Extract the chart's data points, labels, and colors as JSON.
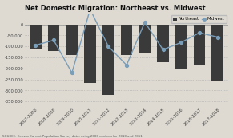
{
  "title": "Net Domestic Migration: Northeast vs. Midwest",
  "categories": [
    "2007-2008",
    "2008-2009",
    "2009-2010",
    "2010-2011",
    "2011-2012",
    "2012-2013",
    "2013-2014",
    "2014-2015",
    "2015-2016",
    "2016-2017",
    "2017-2018"
  ],
  "northeast_values": [
    -110000,
    -120000,
    -140000,
    -265000,
    -320000,
    -140000,
    -130000,
    -170000,
    -205000,
    -185000,
    -255000
  ],
  "midwest_values": [
    -95000,
    -72000,
    -220000,
    68000,
    -100000,
    -185000,
    10000,
    -115000,
    -82000,
    -38000,
    -58000
  ],
  "bar_color": "#3a3a3a",
  "line_color": "#7a9db8",
  "marker_color": "#7a9db8",
  "ylim": [
    -375000,
    50000
  ],
  "yticks": [
    0,
    -50000,
    -100000,
    -150000,
    -200000,
    -250000,
    -300000,
    -350000
  ],
  "source_text": "SOURCE: Census Current Population Survey data, using 2000 controls for 2010 and 2011",
  "bg_color": "#dedad2",
  "legend_northeast": "Northeast",
  "legend_midwest": "Midwest"
}
